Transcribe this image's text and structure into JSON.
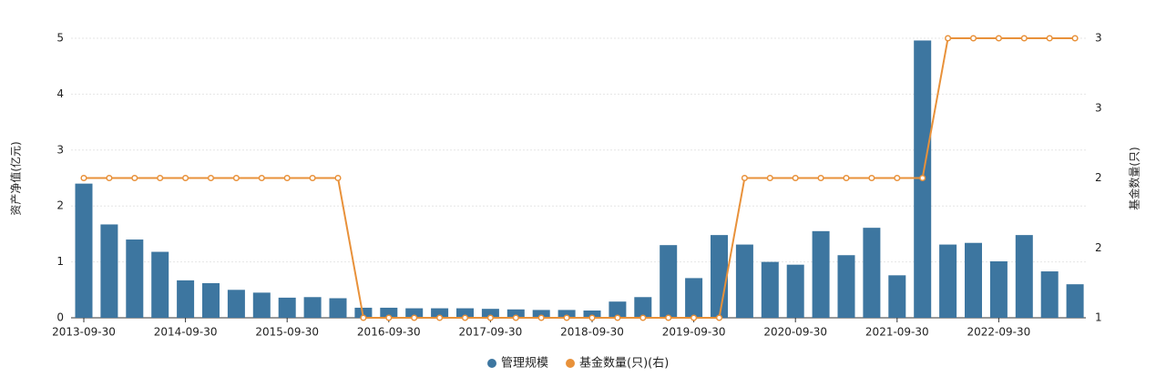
{
  "chart_data": {
    "type": "bar_line",
    "categories": [
      "2013-09-30",
      null,
      null,
      null,
      "2014-09-30",
      null,
      null,
      null,
      "2015-09-30",
      null,
      null,
      null,
      "2016-09-30",
      null,
      null,
      null,
      "2017-09-30",
      null,
      null,
      null,
      "2018-09-30",
      null,
      null,
      null,
      "2019-09-30",
      null,
      null,
      null,
      "2020-09-30",
      null,
      null,
      null,
      "2021-09-30",
      null,
      null,
      null,
      "2022-09-30",
      null,
      null,
      null
    ],
    "y_label": "资产净值(亿元)",
    "y2_label": "基金数量(只)",
    "ylim": [
      0,
      5
    ],
    "yticks": [
      0,
      1,
      2,
      3,
      4,
      5
    ],
    "y2lim": [
      1,
      3
    ],
    "y2ticks": [
      1,
      {
        "value": 1.5,
        "label": "2"
      },
      2,
      {
        "value": 2.5,
        "label": "3"
      },
      3
    ],
    "grid": true,
    "legend": "bottom",
    "series": [
      {
        "name": "管理规模",
        "type": "bar",
        "color": "#3d76a0",
        "values": [
          2.4,
          1.67,
          1.4,
          1.18,
          0.67,
          0.62,
          0.5,
          0.45,
          0.36,
          0.37,
          0.35,
          0.18,
          0.18,
          0.17,
          0.17,
          0.17,
          0.16,
          0.15,
          0.14,
          0.14,
          0.13,
          0.29,
          0.37,
          1.3,
          0.71,
          1.48,
          1.31,
          1.0,
          0.95,
          1.55,
          1.12,
          1.61,
          0.76,
          4.96,
          1.31,
          1.34,
          1.01,
          1.48,
          0.83,
          0.6
        ]
      },
      {
        "name": "基金数量(只)(右)",
        "type": "line",
        "axis": "y2",
        "color": "#e8913a",
        "values": [
          2,
          2,
          2,
          2,
          2,
          2,
          2,
          2,
          2,
          2,
          2,
          1,
          1,
          1,
          1,
          1,
          1,
          1,
          1,
          1,
          1,
          1,
          1,
          1,
          1,
          1,
          2,
          2,
          2,
          2,
          2,
          2,
          2,
          2,
          3,
          3,
          3,
          3,
          3,
          3
        ]
      }
    ]
  }
}
